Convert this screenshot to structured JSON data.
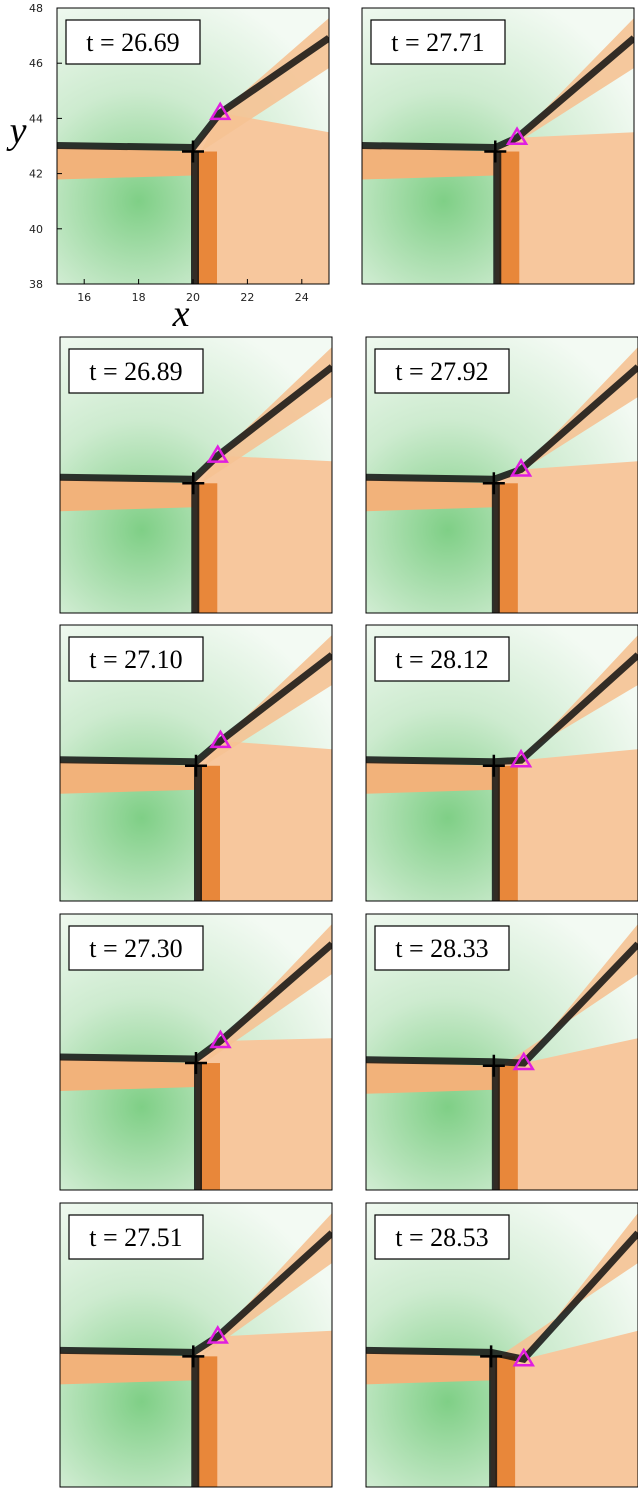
{
  "chart_data": [
    {
      "type": "field",
      "title": "t = 26.69",
      "xlabel": "x",
      "ylabel": "y",
      "xlim": [
        15,
        25
      ],
      "ylim": [
        38,
        48
      ],
      "xticks": [
        16,
        18,
        20,
        22,
        24
      ],
      "yticks": [
        38,
        40,
        42,
        44,
        46,
        48
      ],
      "x": [
        20,
        21
      ],
      "values": [
        42.8,
        44.2
      ]
    },
    {
      "type": "field",
      "title": "t = 26.89",
      "xlim": [
        15,
        25
      ],
      "ylim": [
        38,
        48
      ],
      "x": [
        19.9,
        20.8
      ],
      "values": [
        42.7,
        43.7
      ]
    },
    {
      "type": "field",
      "title": "t = 27.10",
      "xlim": [
        15,
        25
      ],
      "ylim": [
        38,
        48
      ],
      "x": [
        20,
        20.9
      ],
      "values": [
        42.9,
        43.8
      ]
    },
    {
      "type": "field",
      "title": "t = 27.30",
      "xlim": [
        15,
        25
      ],
      "ylim": [
        38,
        48
      ],
      "x": [
        20,
        20.9
      ],
      "values": [
        42.6,
        43.4
      ]
    },
    {
      "type": "field",
      "title": "t = 27.51",
      "xlim": [
        15,
        25
      ],
      "ylim": [
        38,
        48
      ],
      "x": [
        19.9,
        20.8
      ],
      "values": [
        42.6,
        43.3
      ]
    },
    {
      "type": "field",
      "title": "t = 27.71",
      "xlim": [
        15,
        25
      ],
      "ylim": [
        38,
        48
      ],
      "x": [
        19.9,
        20.7
      ],
      "values": [
        42.8,
        43.3
      ]
    },
    {
      "type": "field",
      "title": "t = 27.92",
      "xlim": [
        15,
        25
      ],
      "ylim": [
        38,
        48
      ],
      "x": [
        19.7,
        20.7
      ],
      "values": [
        42.7,
        43.2
      ]
    },
    {
      "type": "field",
      "title": "t = 28.12",
      "xlim": [
        15,
        25
      ],
      "ylim": [
        38,
        48
      ],
      "x": [
        19.7,
        20.7
      ],
      "values": [
        42.9,
        43.1
      ]
    },
    {
      "type": "field",
      "title": "t = 28.33",
      "xlim": [
        15,
        25
      ],
      "ylim": [
        38,
        48
      ],
      "x": [
        19.7,
        20.8
      ],
      "values": [
        42.5,
        42.6
      ]
    },
    {
      "type": "field",
      "title": "t = 28.53",
      "xlim": [
        15,
        25
      ],
      "ylim": [
        38,
        48
      ],
      "x": [
        19.6,
        20.8
      ],
      "values": [
        42.6,
        42.5
      ]
    }
  ]
}
